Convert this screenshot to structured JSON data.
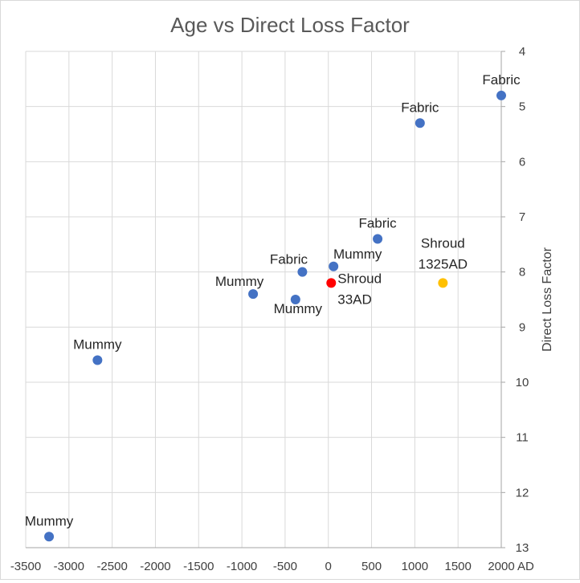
{
  "chart_data": {
    "type": "scatter",
    "title": "Age vs Direct Loss Factor",
    "xlabel": "AD",
    "ylabel": "Direct Loss Factor",
    "xlim": [
      -3500,
      2000
    ],
    "ylim": [
      4,
      13
    ],
    "y_inverted": true,
    "y_axis_side": "right",
    "grid": true,
    "x_ticks": [
      "-3500",
      "-3000",
      "-2500",
      "-2000",
      "-1500",
      "-1000",
      "-500",
      "0",
      "500",
      "1000",
      "1500",
      "2000"
    ],
    "y_ticks": [
      "4",
      "5",
      "6",
      "7",
      "8",
      "9",
      "10",
      "11",
      "12",
      "13"
    ],
    "colors": {
      "samples": "#4472c4",
      "shroud_33": "#ff0000",
      "shroud_1325": "#ffc000"
    },
    "points": [
      {
        "x": 2000,
        "y": 4.8,
        "label": [
          "Fabric"
        ],
        "color": "samples",
        "label_pos": "above"
      },
      {
        "x": 1060,
        "y": 5.3,
        "label": [
          "Fabric"
        ],
        "color": "samples",
        "label_pos": "above"
      },
      {
        "x": 570,
        "y": 7.4,
        "label": [
          "Fabric"
        ],
        "color": "samples",
        "label_pos": "above"
      },
      {
        "x": -300,
        "y": 8.0,
        "label": [
          "Fabric"
        ],
        "color": "samples",
        "label_pos": "above-left"
      },
      {
        "x": 60,
        "y": 7.9,
        "label": [
          "Mummy"
        ],
        "color": "samples",
        "label_pos": "above-right"
      },
      {
        "x": -870,
        "y": 8.4,
        "label": [
          "Mummy"
        ],
        "color": "samples",
        "label_pos": "above-left"
      },
      {
        "x": -380,
        "y": 8.5,
        "label": [
          "Mummy"
        ],
        "color": "samples",
        "label_pos": "below"
      },
      {
        "x": -2670,
        "y": 9.6,
        "label": [
          "Mummy"
        ],
        "color": "samples",
        "label_pos": "above"
      },
      {
        "x": -3230,
        "y": 12.8,
        "label": [
          "Mummy"
        ],
        "color": "samples",
        "label_pos": "above"
      },
      {
        "x": 33,
        "y": 8.2,
        "label": [
          "Shroud",
          "33AD"
        ],
        "color": "shroud_33",
        "label_pos": "right"
      },
      {
        "x": 1325,
        "y": 8.2,
        "label": [
          "Shroud",
          "1325AD"
        ],
        "color": "shroud_1325",
        "label_pos": "above-stacked"
      }
    ]
  }
}
